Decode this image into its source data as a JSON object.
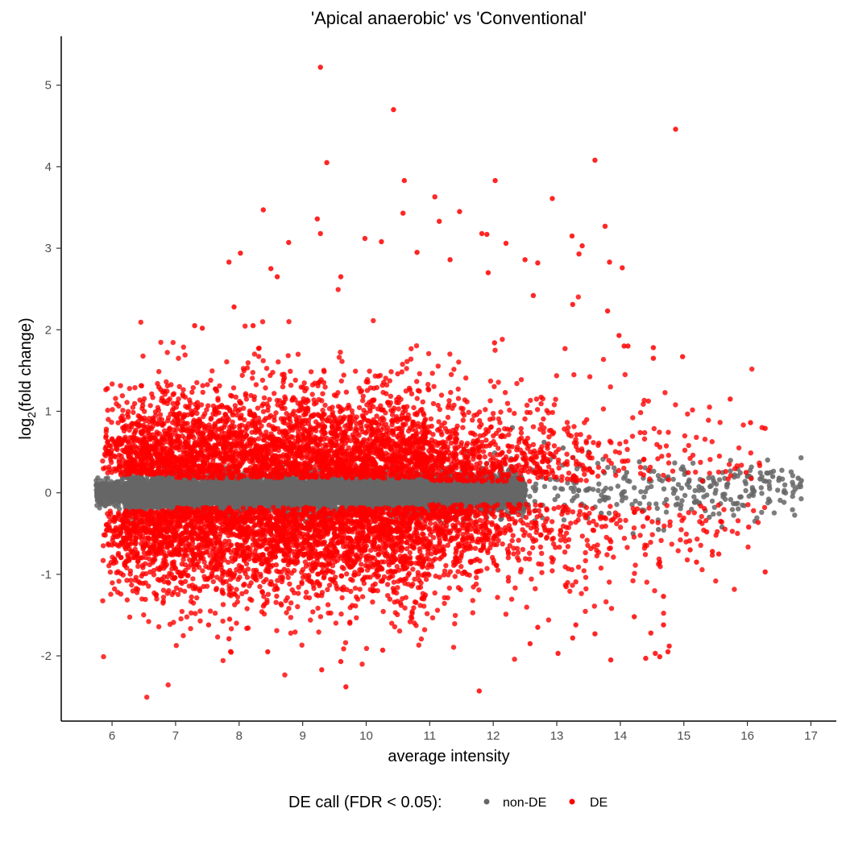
{
  "chart_data": {
    "type": "scatter",
    "title": "'Apical anaerobic' vs 'Conventional'",
    "xlabel": "average intensity",
    "ylabel_main": "log",
    "ylabel_sub": "2",
    "ylabel_tail": "(fold change)",
    "xlim": [
      5.2,
      17.4
    ],
    "ylim": [
      -2.8,
      5.6
    ],
    "x_ticks": [
      6,
      7,
      8,
      9,
      10,
      11,
      12,
      13,
      14,
      15,
      16,
      17
    ],
    "y_ticks": [
      -2,
      -1,
      0,
      1,
      2,
      3,
      4,
      5
    ],
    "grid": false,
    "legend": {
      "title": "DE call (FDR < 0.05):",
      "position": "bottom",
      "entries": [
        {
          "name": "non-DE",
          "color": "#666666"
        },
        {
          "name": "DE",
          "color": "#ff0000"
        }
      ]
    },
    "series": [
      {
        "name": "non-DE",
        "color": "#666666",
        "density": [
          {
            "x_range": [
              5.75,
              12.5
            ],
            "y_center": 0.0,
            "y_spread": 0.11,
            "count": 8000
          },
          {
            "x_range": [
              11.0,
              16.9
            ],
            "y_center": 0.02,
            "y_spread": 0.17,
            "count": 320
          }
        ],
        "points": [
          [
            5.8,
            -0.08
          ],
          [
            5.9,
            0.02
          ],
          [
            6.05,
            0.1
          ],
          [
            6.2,
            -0.12
          ],
          [
            6.5,
            0.55
          ],
          [
            6.9,
            -0.4
          ],
          [
            12.3,
            0.8
          ],
          [
            12.8,
            0.62
          ],
          [
            13.1,
            0.55
          ],
          [
            13.5,
            0.5
          ],
          [
            14.2,
            -0.5
          ],
          [
            14.3,
            0.38
          ],
          [
            14.6,
            -0.45
          ],
          [
            15.0,
            0.28
          ],
          [
            15.4,
            -0.3
          ],
          [
            15.6,
            -0.42
          ],
          [
            15.8,
            0.22
          ],
          [
            16.0,
            0.2
          ],
          [
            16.2,
            0.17
          ],
          [
            16.4,
            0.2
          ],
          [
            16.5,
            0.18
          ],
          [
            16.8,
            0.18
          ],
          [
            16.85,
            0.15
          ],
          [
            14.1,
            0.25
          ],
          [
            13.7,
            -0.25
          ],
          [
            15.2,
            -0.1
          ],
          [
            15.3,
            0.15
          ],
          [
            15.9,
            -0.05
          ]
        ]
      },
      {
        "name": "DE",
        "color": "#ff0000",
        "density": [
          {
            "x_range": [
              5.85,
              16.3
            ],
            "y_side": "positive",
            "count": 3600
          },
          {
            "x_range": [
              5.85,
              16.3
            ],
            "y_side": "negative",
            "count": 3500
          }
        ],
        "points": [
          [
            9.28,
            5.22
          ],
          [
            10.43,
            4.7
          ],
          [
            14.87,
            4.46
          ],
          [
            9.38,
            4.05
          ],
          [
            13.6,
            4.08
          ],
          [
            10.6,
            3.83
          ],
          [
            12.03,
            3.83
          ],
          [
            11.08,
            3.63
          ],
          [
            12.93,
            3.61
          ],
          [
            8.38,
            3.47
          ],
          [
            10.58,
            3.43
          ],
          [
            11.47,
            3.45
          ],
          [
            9.23,
            3.36
          ],
          [
            11.15,
            3.33
          ],
          [
            13.76,
            3.27
          ],
          [
            9.28,
            3.18
          ],
          [
            11.82,
            3.18
          ],
          [
            11.9,
            3.17
          ],
          [
            13.24,
            3.15
          ],
          [
            8.78,
            3.07
          ],
          [
            12.2,
            3.06
          ],
          [
            13.4,
            3.03
          ],
          [
            9.98,
            3.12
          ],
          [
            10.24,
            3.08
          ],
          [
            10.8,
            2.95
          ],
          [
            11.32,
            2.86
          ],
          [
            12.5,
            2.86
          ],
          [
            13.35,
            2.93
          ],
          [
            12.7,
            2.82
          ],
          [
            13.83,
            2.83
          ],
          [
            14.03,
            2.76
          ],
          [
            7.84,
            2.83
          ],
          [
            8.02,
            2.94
          ],
          [
            8.5,
            2.75
          ],
          [
            8.6,
            2.65
          ],
          [
            9.6,
            2.65
          ],
          [
            11.92,
            2.7
          ],
          [
            13.25,
            2.31
          ],
          [
            12.63,
            2.42
          ],
          [
            7.92,
            2.28
          ],
          [
            13.8,
            2.23
          ],
          [
            8.22,
            2.05
          ],
          [
            7.42,
            2.02
          ],
          [
            7.3,
            2.05
          ],
          [
            12.02,
            1.84
          ],
          [
            14.06,
            1.8
          ],
          [
            14.12,
            1.8
          ],
          [
            14.52,
            1.78
          ],
          [
            14.98,
            1.67
          ],
          [
            13.98,
            1.93
          ],
          [
            14.52,
            1.65
          ],
          [
            15.73,
            1.15
          ],
          [
            16.05,
            0.86
          ],
          [
            16.28,
            0.79
          ],
          [
            15.98,
            0.25
          ],
          [
            16.02,
            -0.42
          ],
          [
            15.58,
            -0.35
          ],
          [
            16.28,
            -0.97
          ],
          [
            15.2,
            -0.85
          ],
          [
            15.1,
            -0.7
          ],
          [
            15.45,
            -0.72
          ],
          [
            14.62,
            -0.85
          ],
          [
            14.68,
            -1.27
          ],
          [
            14.68,
            -1.62
          ],
          [
            14.48,
            -1.72
          ],
          [
            14.55,
            -1.97
          ],
          [
            14.75,
            -1.95
          ],
          [
            14.4,
            -2.03
          ],
          [
            14.62,
            -2.01
          ],
          [
            14.77,
            -1.88
          ],
          [
            13.85,
            -2.05
          ],
          [
            13.02,
            -1.97
          ],
          [
            12.58,
            -1.85
          ],
          [
            11.78,
            -2.43
          ],
          [
            9.68,
            -2.38
          ],
          [
            9.3,
            -2.17
          ],
          [
            9.6,
            -2.07
          ],
          [
            8.45,
            -1.95
          ],
          [
            10.26,
            -1.93
          ],
          [
            7.84,
            -1.79
          ],
          [
            7.52,
            -1.62
          ],
          [
            7.85,
            -1.55
          ],
          [
            13.3,
            -1.62
          ],
          [
            13.6,
            -1.73
          ],
          [
            14.22,
            -1.52
          ],
          [
            13.25,
            -1.78
          ],
          [
            12.7,
            -1.65
          ],
          [
            15.55,
            -0.75
          ],
          [
            15.36,
            -0.48
          ]
        ]
      }
    ]
  }
}
